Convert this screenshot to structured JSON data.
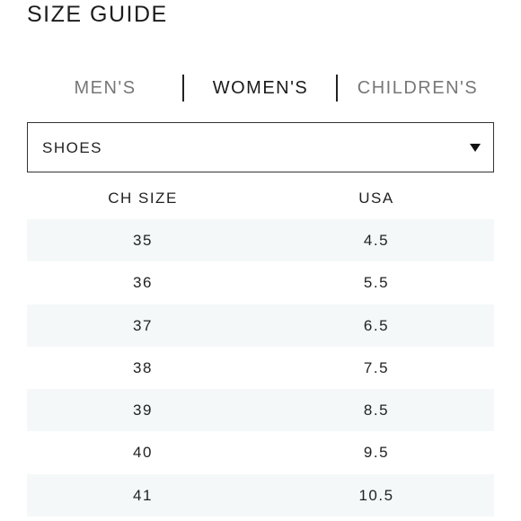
{
  "title": "SIZE GUIDE",
  "tabs": [
    {
      "label": "MEN'S",
      "active": false
    },
    {
      "label": "WOMEN'S",
      "active": true
    },
    {
      "label": "CHILDREN'S",
      "active": false
    }
  ],
  "category_select": {
    "value": "SHOES"
  },
  "table": {
    "headers": [
      "CH SIZE",
      "USA"
    ],
    "rows": [
      [
        "35",
        "4.5"
      ],
      [
        "36",
        "5.5"
      ],
      [
        "37",
        "6.5"
      ],
      [
        "38",
        "7.5"
      ],
      [
        "39",
        "8.5"
      ],
      [
        "40",
        "9.5"
      ],
      [
        "41",
        "10.5"
      ]
    ]
  },
  "colors": {
    "stripe": "#f4f8f9",
    "text": "#222222",
    "inactive_tab": "#777777"
  }
}
